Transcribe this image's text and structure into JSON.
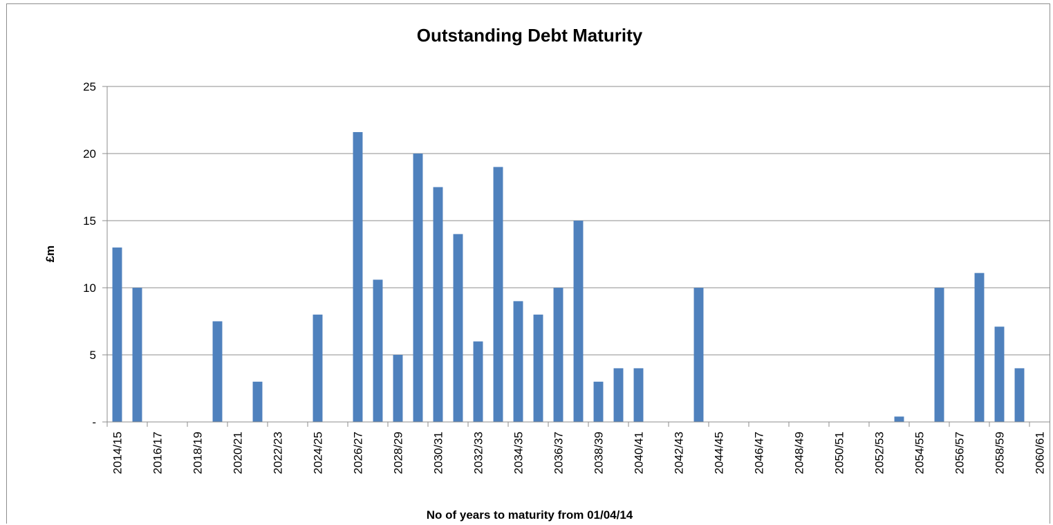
{
  "chart_data": {
    "type": "bar",
    "title": "Outstanding Debt Maturity",
    "xlabel": "No of years to maturity from 01/04/14",
    "ylabel": "£m",
    "ylim": [
      0,
      25
    ],
    "yticks": [
      0,
      5,
      10,
      15,
      20,
      25
    ],
    "ytick_labels": [
      "-",
      "5",
      "10",
      "15",
      "20",
      "25"
    ],
    "grid": true,
    "legend": "none",
    "bar_color": "#4f81bd",
    "categories": [
      "2014/15",
      "2015/16",
      "2016/17",
      "2017/18",
      "2018/19",
      "2019/20",
      "2020/21",
      "2021/22",
      "2022/23",
      "2023/24",
      "2024/25",
      "2025/26",
      "2026/27",
      "2027/28",
      "2028/29",
      "2029/30",
      "2030/31",
      "2031/32",
      "2032/33",
      "2033/34",
      "2034/35",
      "2035/36",
      "2036/37",
      "2037/38",
      "2038/39",
      "2039/40",
      "2040/41",
      "2041/42",
      "2042/43",
      "2043/44",
      "2044/45",
      "2045/46",
      "2046/47",
      "2047/48",
      "2048/49",
      "2049/50",
      "2050/51",
      "2051/52",
      "2052/53",
      "2053/54",
      "2054/55",
      "2055/56",
      "2056/57",
      "2057/58",
      "2058/59",
      "2059/60",
      "2060/61"
    ],
    "shown_tick_labels": [
      "2014/15",
      "2016/17",
      "2018/19",
      "2020/21",
      "2022/23",
      "2024/25",
      "2026/27",
      "2028/29",
      "2030/31",
      "2032/33",
      "2034/35",
      "2036/37",
      "2038/39",
      "2040/41",
      "2042/43",
      "2044/45",
      "2046/47",
      "2048/49",
      "2050/51",
      "2052/53",
      "2054/55",
      "2056/57",
      "2058/59",
      "2060/61"
    ],
    "values": [
      13,
      10,
      0,
      0,
      0,
      7.5,
      0,
      3,
      0,
      0,
      8,
      0,
      21.6,
      10.6,
      5,
      20,
      17.5,
      14,
      6,
      19,
      9,
      8,
      10,
      15,
      3,
      4,
      4,
      0,
      0,
      10,
      0,
      0,
      0,
      0,
      0,
      0,
      0,
      0,
      0,
      0.4,
      0,
      10,
      0,
      11.1,
      7.1,
      4,
      0
    ]
  }
}
